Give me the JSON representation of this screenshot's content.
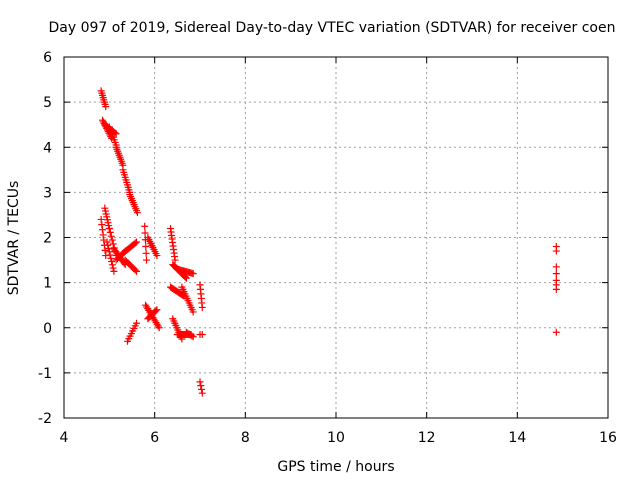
{
  "chart_data": {
    "type": "scatter",
    "title": "Day 097 of 2019, Sidereal Day-to-day VTEC variation (SDTVAR) for receiver coen",
    "xlabel": "GPS time / hours",
    "ylabel": "SDTVAR / TECUs",
    "xlim": [
      4,
      16
    ],
    "ylim": [
      -2,
      6
    ],
    "xticks": [
      4,
      6,
      8,
      10,
      12,
      14,
      16
    ],
    "yticks": [
      -2,
      -1,
      0,
      1,
      2,
      3,
      4,
      5,
      6
    ],
    "xtick_labels": [
      "4",
      "6",
      "8",
      "10",
      "12",
      "14",
      "16"
    ],
    "ytick_labels": [
      "-2",
      "-1",
      "0",
      "1",
      "2",
      "3",
      "4",
      "5",
      "6"
    ],
    "grid": true,
    "marker": "+",
    "color": "#ff0000",
    "segments": [
      {
        "x0": 4.82,
        "x1": 4.92,
        "y0": 5.25,
        "y1": 4.9,
        "n": 8
      },
      {
        "x0": 4.85,
        "x1": 5.05,
        "y0": 4.6,
        "y1": 4.2,
        "n": 12
      },
      {
        "x0": 4.9,
        "x1": 5.15,
        "y0": 4.5,
        "y1": 4.3,
        "n": 10
      },
      {
        "x0": 5.0,
        "x1": 5.15,
        "y0": 4.45,
        "y1": 4.05,
        "n": 8
      },
      {
        "x0": 5.15,
        "x1": 5.3,
        "y0": 4.0,
        "y1": 3.6,
        "n": 10
      },
      {
        "x0": 5.3,
        "x1": 5.45,
        "y0": 3.5,
        "y1": 3.0,
        "n": 10
      },
      {
        "x0": 5.45,
        "x1": 5.62,
        "y0": 2.95,
        "y1": 2.55,
        "n": 10
      },
      {
        "x0": 4.82,
        "x1": 4.92,
        "y0": 2.4,
        "y1": 1.6,
        "n": 8
      },
      {
        "x0": 4.9,
        "x1": 5.0,
        "y0": 2.65,
        "y1": 2.2,
        "n": 8
      },
      {
        "x0": 4.95,
        "x1": 5.1,
        "y0": 1.9,
        "y1": 1.25,
        "n": 10
      },
      {
        "x0": 5.0,
        "x1": 5.15,
        "y0": 2.2,
        "y1": 1.6,
        "n": 8
      },
      {
        "x0": 5.1,
        "x1": 5.35,
        "y0": 1.75,
        "y1": 1.4,
        "n": 12
      },
      {
        "x0": 5.15,
        "x1": 5.35,
        "y0": 1.5,
        "y1": 1.7,
        "n": 8
      },
      {
        "x0": 5.3,
        "x1": 5.6,
        "y0": 1.65,
        "y1": 1.9,
        "n": 12
      },
      {
        "x0": 5.35,
        "x1": 5.6,
        "y0": 1.5,
        "y1": 1.25,
        "n": 10
      },
      {
        "x0": 5.4,
        "x1": 5.6,
        "y0": -0.3,
        "y1": 0.1,
        "n": 8
      },
      {
        "x0": 5.78,
        "x1": 5.82,
        "y0": 2.25,
        "y1": 1.5,
        "n": 6
      },
      {
        "x0": 5.85,
        "x1": 6.05,
        "y0": 2.0,
        "y1": 1.6,
        "n": 10
      },
      {
        "x0": 5.8,
        "x1": 6.1,
        "y0": 0.5,
        "y1": 0.0,
        "n": 14
      },
      {
        "x0": 5.85,
        "x1": 6.05,
        "y0": 0.2,
        "y1": 0.4,
        "n": 10
      },
      {
        "x0": 6.35,
        "x1": 6.45,
        "y0": 2.2,
        "y1": 1.5,
        "n": 10
      },
      {
        "x0": 6.4,
        "x1": 6.7,
        "y0": 1.4,
        "y1": 1.1,
        "n": 16
      },
      {
        "x0": 6.5,
        "x1": 6.85,
        "y0": 1.3,
        "y1": 1.2,
        "n": 14
      },
      {
        "x0": 6.35,
        "x1": 6.65,
        "y0": 0.9,
        "y1": 0.7,
        "n": 14
      },
      {
        "x0": 6.6,
        "x1": 6.85,
        "y0": 0.9,
        "y1": 0.35,
        "n": 12
      },
      {
        "x0": 6.4,
        "x1": 6.6,
        "y0": 0.2,
        "y1": -0.25,
        "n": 10
      },
      {
        "x0": 6.5,
        "x1": 6.8,
        "y0": -0.15,
        "y1": -0.15,
        "n": 14
      },
      {
        "x0": 6.7,
        "x1": 6.85,
        "y0": -0.1,
        "y1": -0.2,
        "n": 6
      },
      {
        "x0": 7.0,
        "x1": 7.05,
        "y0": 0.95,
        "y1": 0.45,
        "n": 6
      },
      {
        "x0": 7.0,
        "x1": 7.05,
        "y0": -1.2,
        "y1": -1.45,
        "n": 4
      },
      {
        "x0": 7.0,
        "x1": 7.05,
        "y0": -0.15,
        "y1": -0.15,
        "n": 2
      },
      {
        "x0": 14.86,
        "x1": 14.86,
        "y0": 1.8,
        "y1": 1.7,
        "n": 2
      },
      {
        "x0": 14.86,
        "x1": 14.86,
        "y0": 1.35,
        "y1": 1.2,
        "n": 2
      },
      {
        "x0": 14.86,
        "x1": 14.86,
        "y0": 1.05,
        "y1": 0.85,
        "n": 3
      },
      {
        "x0": 14.86,
        "x1": 14.86,
        "y0": -0.1,
        "y1": -0.1,
        "n": 1
      }
    ]
  }
}
